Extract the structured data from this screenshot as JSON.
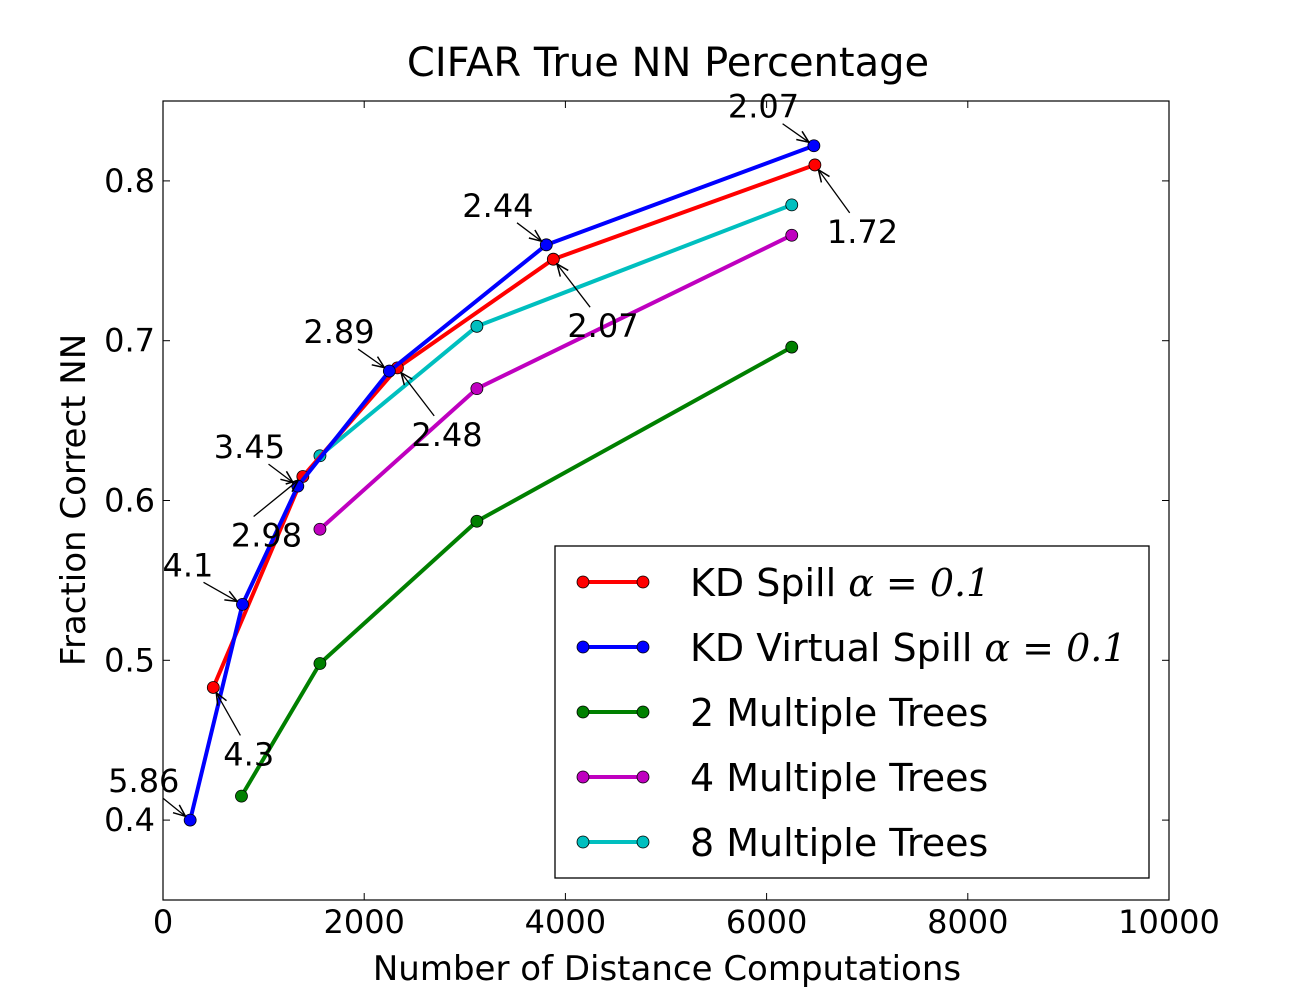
{
  "chart_data": {
    "type": "line",
    "title": "CIFAR True NN Percentage",
    "xlabel": "Number of Distance Computations",
    "ylabel": "Fraction Correct NN",
    "xlim": [
      0,
      10000
    ],
    "ylim": [
      0.35,
      0.85
    ],
    "xticks": [
      0,
      2000,
      4000,
      6000,
      8000,
      10000
    ],
    "xtick_labels": [
      "0",
      "2000",
      "4000",
      "6000",
      "8000",
      "10000"
    ],
    "yticks": [
      0.4,
      0.5,
      0.6,
      0.7,
      0.8
    ],
    "ytick_labels": [
      "0.4",
      "0.5",
      "0.6",
      "0.7",
      "0.8"
    ],
    "grid": false,
    "legend_position": "bottom-right",
    "series": [
      {
        "name": "KD Spill",
        "name_math": "α = 0.1",
        "color": "#ff0000",
        "x": [
          500,
          1390,
          2330,
          3880,
          6480
        ],
        "y": [
          0.483,
          0.615,
          0.683,
          0.751,
          0.81
        ]
      },
      {
        "name": "KD Virtual Spill",
        "name_math": "α = 0.1",
        "color": "#0000ff",
        "x": [
          270,
          790,
          1340,
          2250,
          3810,
          6470
        ],
        "y": [
          0.4,
          0.535,
          0.609,
          0.681,
          0.76,
          0.822
        ]
      },
      {
        "name": "2 Multiple Trees",
        "color": "#008000",
        "x": [
          780,
          1560,
          3120,
          6250
        ],
        "y": [
          0.415,
          0.498,
          0.587,
          0.696
        ]
      },
      {
        "name": "4 Multiple Trees",
        "color": "#bf00bf",
        "x": [
          1560,
          3120,
          6250
        ],
        "y": [
          0.582,
          0.67,
          0.766
        ]
      },
      {
        "name": "8 Multiple Trees",
        "color": "#00bfbf",
        "x": [
          1560,
          3120,
          6250
        ],
        "y": [
          0.628,
          0.709,
          0.785
        ]
      }
    ],
    "annotations": [
      {
        "text": "5.86",
        "x": 270,
        "y": 0.4,
        "series": "KD Virtual Spill"
      },
      {
        "text": "4.1",
        "x": 790,
        "y": 0.535,
        "series": "KD Virtual Spill"
      },
      {
        "text": "3.45",
        "x": 1340,
        "y": 0.609,
        "series": "KD Virtual Spill"
      },
      {
        "text": "2.89",
        "x": 2250,
        "y": 0.681,
        "series": "KD Virtual Spill"
      },
      {
        "text": "2.44",
        "x": 3810,
        "y": 0.76,
        "series": "KD Virtual Spill"
      },
      {
        "text": "2.07",
        "x": 6470,
        "y": 0.822,
        "series": "KD Virtual Spill"
      },
      {
        "text": "4.3",
        "x": 500,
        "y": 0.483,
        "series": "KD Spill"
      },
      {
        "text": "2.98",
        "x": 1390,
        "y": 0.615,
        "series": "KD Spill"
      },
      {
        "text": "2.48",
        "x": 2330,
        "y": 0.683,
        "series": "KD Spill"
      },
      {
        "text": "2.07",
        "x": 3880,
        "y": 0.751,
        "series": "KD Spill"
      },
      {
        "text": "1.72",
        "x": 6480,
        "y": 0.81,
        "series": "KD Spill"
      }
    ]
  }
}
